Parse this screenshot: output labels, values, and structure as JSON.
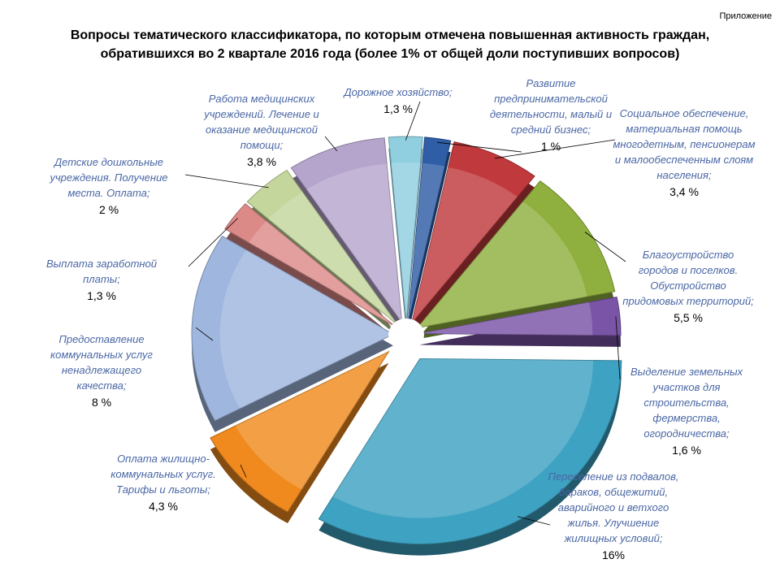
{
  "appendix": "Приложение",
  "title_line1": "Вопросы тематического классификатора, по которым отмечена повышенная активность граждан,",
  "title_line2": "обратившихся  во 2 квартале  2016 года  (более 1% от общей доли поступивших вопросов)",
  "chart_data": {
    "type": "pie",
    "title": "Вопросы тематического классификатора, по которым отмечена повышенная активность граждан, обратившихся во 2 квартале 2016 года (более 1% от общей доли поступивших вопросов)",
    "slices": [
      {
        "label": "Дорожное хозяйство;",
        "value": 1.3,
        "value_label": "1,3 %",
        "color": "#8fcfe0"
      },
      {
        "label": "Развитие предпринимательской деятельности, малый и средний бизнес;",
        "value": 1.0,
        "value_label": "1 %",
        "color": "#2f5da6"
      },
      {
        "label": "Социальное обеспечение, материальная помощь многодетным, пенсионерам и малообеспеченным слоям населения;",
        "value": 3.4,
        "value_label": "3,4 %",
        "color": "#c0393c"
      },
      {
        "label": "Благоустройство городов и поселков. Обустройство придомовых территорий;",
        "value": 5.5,
        "value_label": "5,5 %",
        "color": "#8fb03e"
      },
      {
        "label": "Выделение земельных участков для строительства, фермерства, огородничества;",
        "value": 1.6,
        "value_label": "1,6 %",
        "color": "#7a54a6"
      },
      {
        "label": "Переселение из подвалов, бараков, общежитий, аварийного и ветхого жилья. Улучшение жилищных условий;",
        "value": 16,
        "value_label": "16%",
        "color": "#3ea2c2"
      },
      {
        "label": "Оплата жилищно-коммунальных услуг. Тарифы и льготы;",
        "value": 4.3,
        "value_label": "4,3 %",
        "color": "#f08a1e"
      },
      {
        "label": "Предоставление коммунальных услуг ненадлежащего качества;",
        "value": 8,
        "value_label": "8 %",
        "color": "#9fb6de"
      },
      {
        "label": "Выплата заработной платы;",
        "value": 1.3,
        "value_label": "1,3 %",
        "color": "#dc8a88"
      },
      {
        "label": "Детские дошкольные учреждения. Получение места. Оплата;",
        "value": 2,
        "value_label": "2 %",
        "color": "#c4d69b"
      },
      {
        "label": "Работа медицинских учреждений. Лечение и оказание медицинской помощи;",
        "value": 3.8,
        "value_label": "3,8 %",
        "color": "#b5a5cc"
      }
    ]
  }
}
